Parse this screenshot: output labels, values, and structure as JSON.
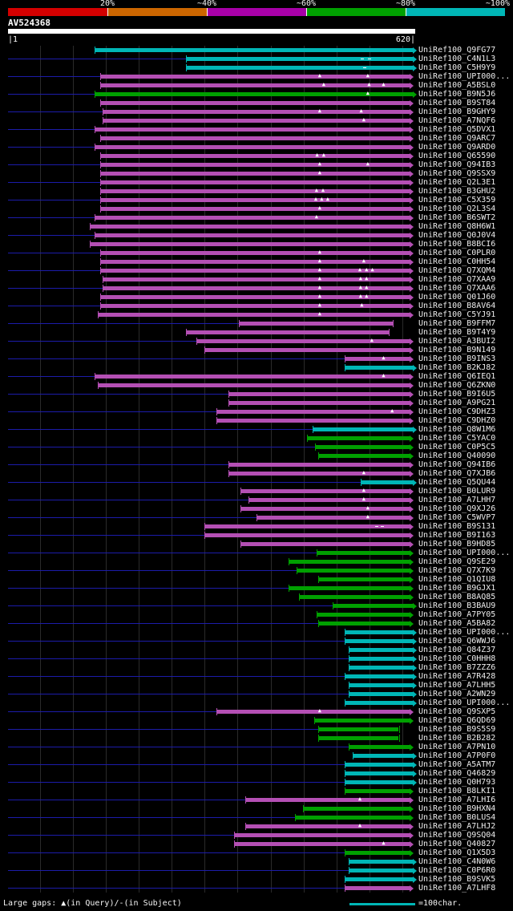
{
  "header": {
    "scale_labels": [
      "20%",
      "~40%",
      "~60%",
      "~80%",
      "~100%"
    ],
    "scale_colors": [
      "#d40000",
      "#cc6600",
      "#a800a8",
      "#00a000",
      "#00b6b6"
    ],
    "query_title": "AV524368",
    "axis_start_label": "|1",
    "axis_end_label": "620|"
  },
  "legend": {
    "gaps_label": "Large gaps: ▲(in Query)/-(in Subject)",
    "ruler_label": "=100char.",
    "ruler_chars": 100
  },
  "chart_data": {
    "type": "bar",
    "title": "AV524368",
    "xlim": [
      1,
      620
    ],
    "grid_interval": 50,
    "gap_glyph": "▲",
    "dash_glyph": "-",
    "identity_colors": {
      "magenta": "#b44fb4",
      "green": "#00a000",
      "cyan": "#00b6b6"
    },
    "leader_color": "#1c1caa",
    "rows": [
      {
        "id": "UniRef100_Q9FG77",
        "color": "cyan",
        "start": 133,
        "end": 616
      },
      {
        "id": "UniRef100_C4N1L3",
        "color": "cyan",
        "start": 272,
        "end": 616,
        "leader": true,
        "dashes": [
          540,
          551
        ]
      },
      {
        "id": "UniRef100_C5H9Y9",
        "color": "cyan",
        "start": 272,
        "end": 616,
        "dashes": [
          543
        ]
      },
      {
        "id": "UniRef100_UPI000...",
        "color": "magenta",
        "start": 141,
        "end": 612,
        "leader": true,
        "gaps": [
          476,
          549
        ]
      },
      {
        "id": "UniRef100_A5BSL0",
        "color": "magenta",
        "start": 141,
        "end": 612,
        "gaps": [
          482,
          551,
          573
        ]
      },
      {
        "id": "UniRef100_B9N5J6",
        "color": "green",
        "start": 133,
        "end": 616,
        "leader": true,
        "gaps": [
          549
        ]
      },
      {
        "id": "UniRef100_B9ST84",
        "color": "magenta",
        "start": 141,
        "end": 612
      },
      {
        "id": "UniRef100_B9GHY9",
        "color": "magenta",
        "start": 145,
        "end": 612,
        "leader": true,
        "gaps": [
          476,
          539
        ]
      },
      {
        "id": "UniRef100_A7NQF6",
        "color": "magenta",
        "start": 145,
        "end": 612,
        "gaps": [
          543
        ]
      },
      {
        "id": "UniRef100_Q5DVX1",
        "color": "magenta",
        "start": 133,
        "end": 612,
        "leader": true
      },
      {
        "id": "UniRef100_Q9ARC7",
        "color": "magenta",
        "start": 141,
        "end": 612
      },
      {
        "id": "UniRef100_Q9ARD0",
        "color": "magenta",
        "start": 133,
        "end": 612,
        "leader": true
      },
      {
        "id": "UniRef100_Q65590",
        "color": "magenta",
        "start": 141,
        "end": 612,
        "gaps": [
          472,
          482
        ]
      },
      {
        "id": "UniRef100_Q94IB3",
        "color": "magenta",
        "start": 141,
        "end": 612,
        "leader": true,
        "gaps": [
          476,
          549
        ]
      },
      {
        "id": "UniRef100_Q9SSX9",
        "color": "magenta",
        "start": 141,
        "end": 612,
        "gaps": [
          476
        ]
      },
      {
        "id": "UniRef100_Q2L3E1",
        "color": "magenta",
        "start": 141,
        "end": 612,
        "leader": true
      },
      {
        "id": "UniRef100_B3GHU2",
        "color": "magenta",
        "start": 141,
        "end": 612,
        "gaps": [
          471,
          481
        ]
      },
      {
        "id": "UniRef100_C5X359",
        "color": "magenta",
        "start": 141,
        "end": 612,
        "leader": true,
        "gaps": [
          470,
          479,
          488
        ]
      },
      {
        "id": "UniRef100_Q2L3S4",
        "color": "magenta",
        "start": 141,
        "end": 612,
        "gaps": [
          476
        ]
      },
      {
        "id": "UniRef100_B6SWT2",
        "color": "magenta",
        "start": 133,
        "end": 612,
        "leader": true,
        "gaps": [
          471
        ]
      },
      {
        "id": "UniRef100_Q8H6W1",
        "color": "magenta",
        "start": 125,
        "end": 612
      },
      {
        "id": "UniRef100_Q0J0V4",
        "color": "magenta",
        "start": 133,
        "end": 612,
        "leader": true
      },
      {
        "id": "UniRef100_B8BCI6",
        "color": "magenta",
        "start": 125,
        "end": 612
      },
      {
        "id": "UniRef100_C0PLR0",
        "color": "magenta",
        "start": 141,
        "end": 612,
        "leader": true,
        "gaps": [
          476
        ]
      },
      {
        "id": "UniRef100_C0HH54",
        "color": "magenta",
        "start": 141,
        "end": 612,
        "gaps": [
          476,
          543
        ]
      },
      {
        "id": "UniRef100_Q7XQM4",
        "color": "magenta",
        "start": 141,
        "end": 612,
        "leader": true,
        "gaps": [
          476,
          537,
          547,
          556
        ]
      },
      {
        "id": "UniRef100_Q7XAA9",
        "color": "magenta",
        "start": 145,
        "end": 612,
        "gaps": [
          476,
          538,
          547
        ]
      },
      {
        "id": "UniRef100_Q7XAA6",
        "color": "magenta",
        "start": 145,
        "end": 612,
        "leader": true,
        "gaps": [
          476,
          538,
          547
        ]
      },
      {
        "id": "UniRef100_Q01J60",
        "color": "magenta",
        "start": 141,
        "end": 612,
        "gaps": [
          476,
          538,
          547
        ]
      },
      {
        "id": "UniRef100_B8AV64",
        "color": "magenta",
        "start": 141,
        "end": 612,
        "leader": true,
        "gaps": [
          476,
          540
        ]
      },
      {
        "id": "UniRef100_C5YJ91",
        "color": "magenta",
        "start": 137,
        "end": 612,
        "gaps": [
          476
        ]
      },
      {
        "id": "UniRef100_B9FFM7",
        "color": "magenta",
        "start": 352,
        "end": 586,
        "leader": true
      },
      {
        "id": "UniRef100_B9T4Y9",
        "color": "magenta",
        "start": 272,
        "end": 580
      },
      {
        "id": "UniRef100_A3BUI2",
        "color": "magenta",
        "start": 287,
        "end": 612,
        "leader": true,
        "gaps": [
          555
        ]
      },
      {
        "id": "UniRef100_B9N149",
        "color": "magenta",
        "start": 300,
        "end": 612
      },
      {
        "id": "UniRef100_B9INS3",
        "color": "magenta",
        "start": 513,
        "end": 612,
        "leader": true,
        "gaps": [
          573
        ]
      },
      {
        "id": "UniRef100_B2KJ82",
        "color": "cyan",
        "start": 513,
        "end": 616
      },
      {
        "id": "UniRef100_Q6IEQ1",
        "color": "magenta",
        "start": 133,
        "end": 612,
        "leader": true,
        "gaps": [
          573
        ]
      },
      {
        "id": "UniRef100_Q6ZKN0",
        "color": "magenta",
        "start": 137,
        "end": 612
      },
      {
        "id": "UniRef100_B9I6U5",
        "color": "magenta",
        "start": 336,
        "end": 612,
        "leader": true
      },
      {
        "id": "UniRef100_A9PG21",
        "color": "magenta",
        "start": 336,
        "end": 612
      },
      {
        "id": "UniRef100_C9DHZ3",
        "color": "magenta",
        "start": 318,
        "end": 612,
        "leader": true,
        "gaps": [
          586
        ]
      },
      {
        "id": "UniRef100_C9DHZ0",
        "color": "magenta",
        "start": 318,
        "end": 612
      },
      {
        "id": "UniRef100_Q8W1M6",
        "color": "cyan",
        "start": 464,
        "end": 616,
        "leader": true
      },
      {
        "id": "UniRef100_C5YAC0",
        "color": "green",
        "start": 455,
        "end": 612
      },
      {
        "id": "UniRef100_C0P5C5",
        "color": "green",
        "start": 468,
        "end": 612,
        "leader": true
      },
      {
        "id": "UniRef100_Q40090",
        "color": "green",
        "start": 473,
        "end": 612
      },
      {
        "id": "UniRef100_Q94IB6",
        "color": "magenta",
        "start": 336,
        "end": 612,
        "leader": true
      },
      {
        "id": "UniRef100_Q7XJB6",
        "color": "magenta",
        "start": 336,
        "end": 612,
        "gaps": [
          543
        ]
      },
      {
        "id": "UniRef100_Q5QU44",
        "color": "cyan",
        "start": 537,
        "end": 616,
        "leader": true
      },
      {
        "id": "UniRef100_B0LUR9",
        "color": "magenta",
        "start": 354,
        "end": 612,
        "gaps": [
          543
        ]
      },
      {
        "id": "UniRef100_A7LHH7",
        "color": "magenta",
        "start": 367,
        "end": 612,
        "leader": true,
        "gaps": [
          543
        ]
      },
      {
        "id": "UniRef100_Q9XJ26",
        "color": "magenta",
        "start": 354,
        "end": 612,
        "gaps": [
          549
        ]
      },
      {
        "id": "UniRef100_C5WVP7",
        "color": "magenta",
        "start": 379,
        "end": 612,
        "leader": true,
        "gaps": [
          549
        ]
      },
      {
        "id": "UniRef100_B9S131",
        "color": "magenta",
        "start": 300,
        "end": 612,
        "dashes": [
          561,
          570
        ]
      },
      {
        "id": "UniRef100_B9I163",
        "color": "magenta",
        "start": 300,
        "end": 612,
        "leader": true
      },
      {
        "id": "UniRef100_B9HD85",
        "color": "magenta",
        "start": 354,
        "end": 612
      },
      {
        "id": "UniRef100_UPI000...",
        "color": "green",
        "start": 470,
        "end": 612,
        "leader": true
      },
      {
        "id": "UniRef100_Q9SE29",
        "color": "green",
        "start": 428,
        "end": 612
      },
      {
        "id": "UniRef100_Q7X7K9",
        "color": "green",
        "start": 440,
        "end": 612,
        "leader": true
      },
      {
        "id": "UniRef100_Q1QIU8",
        "color": "green",
        "start": 473,
        "end": 612
      },
      {
        "id": "UniRef100_B9GJX1",
        "color": "green",
        "start": 428,
        "end": 612,
        "leader": true
      },
      {
        "id": "UniRef100_B8AQ85",
        "color": "green",
        "start": 443,
        "end": 612
      },
      {
        "id": "UniRef100_B3BAU9",
        "color": "green",
        "start": 494,
        "end": 616,
        "leader": true
      },
      {
        "id": "UniRef100_A7PY05",
        "color": "green",
        "start": 470,
        "end": 612
      },
      {
        "id": "UniRef100_A5BA82",
        "color": "green",
        "start": 473,
        "end": 612,
        "leader": true
      },
      {
        "id": "UniRef100_UPI000...",
        "color": "cyan",
        "start": 513,
        "end": 616
      },
      {
        "id": "UniRef100_Q6WWJ6",
        "color": "cyan",
        "start": 513,
        "end": 616,
        "leader": true
      },
      {
        "id": "UniRef100_Q84Z37",
        "color": "cyan",
        "start": 519,
        "end": 616
      },
      {
        "id": "UniRef100_C0HHH8",
        "color": "cyan",
        "start": 519,
        "end": 616,
        "leader": true
      },
      {
        "id": "UniRef100_B7ZZZ6",
        "color": "cyan",
        "start": 519,
        "end": 616
      },
      {
        "id": "UniRef100_A7R428",
        "color": "cyan",
        "start": 513,
        "end": 616,
        "leader": true
      },
      {
        "id": "UniRef100_A7LHH5",
        "color": "cyan",
        "start": 519,
        "end": 616
      },
      {
        "id": "UniRef100_A2WN29",
        "color": "cyan",
        "start": 519,
        "end": 616,
        "leader": true
      },
      {
        "id": "UniRef100_UPI000...",
        "color": "cyan",
        "start": 513,
        "end": 616
      },
      {
        "id": "UniRef100_Q9SXP5",
        "color": "magenta",
        "start": 318,
        "end": 612,
        "leader": true,
        "gaps": [
          476
        ]
      },
      {
        "id": "UniRef100_Q6QD69",
        "color": "green",
        "start": 467,
        "end": 612
      },
      {
        "id": "UniRef100_B9S5S9",
        "color": "green",
        "start": 473,
        "end": 595,
        "leader": true
      },
      {
        "id": "UniRef100_B2B282",
        "color": "green",
        "start": 473,
        "end": 595
      },
      {
        "id": "UniRef100_A7PN10",
        "color": "green",
        "start": 519,
        "end": 612,
        "leader": true
      },
      {
        "id": "UniRef100_A7P0F0",
        "color": "cyan",
        "start": 525,
        "end": 616
      },
      {
        "id": "UniRef100_A5ATM7",
        "color": "cyan",
        "start": 513,
        "end": 616,
        "leader": true
      },
      {
        "id": "UniRef100_Q46829",
        "color": "cyan",
        "start": 513,
        "end": 616
      },
      {
        "id": "UniRef100_Q0H793",
        "color": "cyan",
        "start": 513,
        "end": 616,
        "leader": true
      },
      {
        "id": "UniRef100_B8LKI1",
        "color": "green",
        "start": 513,
        "end": 612
      },
      {
        "id": "UniRef100_A7LHI6",
        "color": "magenta",
        "start": 362,
        "end": 612,
        "leader": true,
        "gaps": [
          537
        ]
      },
      {
        "id": "UniRef100_B9HXN4",
        "color": "green",
        "start": 449,
        "end": 612
      },
      {
        "id": "UniRef100_B0LUS4",
        "color": "green",
        "start": 437,
        "end": 612,
        "leader": true
      },
      {
        "id": "UniRef100_A7LHJ2",
        "color": "magenta",
        "start": 362,
        "end": 612,
        "gaps": [
          537
        ]
      },
      {
        "id": "UniRef100_Q9SQ04",
        "color": "magenta",
        "start": 345,
        "end": 612,
        "leader": true
      },
      {
        "id": "UniRef100_Q40827",
        "color": "magenta",
        "start": 345,
        "end": 612,
        "gaps": [
          573
        ]
      },
      {
        "id": "UniRef100_Q1X5D3",
        "color": "green",
        "start": 513,
        "end": 612,
        "leader": true
      },
      {
        "id": "UniRef100_C4N0W6",
        "color": "cyan",
        "start": 519,
        "end": 616
      },
      {
        "id": "UniRef100_C0P6R0",
        "color": "cyan",
        "start": 519,
        "end": 616,
        "leader": true
      },
      {
        "id": "UniRef100_B9SVK5",
        "color": "cyan",
        "start": 513,
        "end": 616
      },
      {
        "id": "UniRef100_A7LHF8",
        "color": "magenta",
        "start": 513,
        "end": 612,
        "leader": true
      }
    ]
  }
}
